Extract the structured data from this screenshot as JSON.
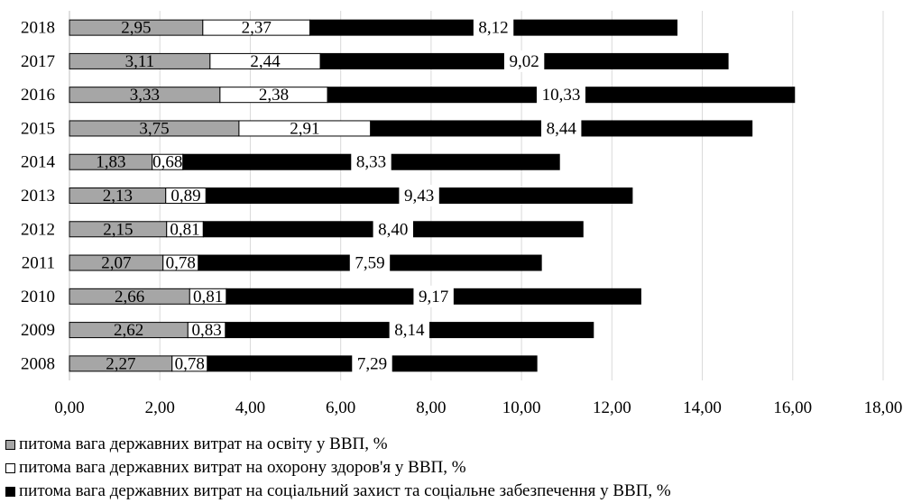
{
  "chart_data": {
    "type": "bar",
    "orientation": "horizontal",
    "stacked": true,
    "categories": [
      "2018",
      "2017",
      "2016",
      "2015",
      "2014",
      "2013",
      "2012",
      "2011",
      "2010",
      "2009",
      "2008"
    ],
    "series": [
      {
        "name": "питома вага державних витрат на освіту у ВВП, %",
        "color": "#a6a6a6",
        "values": [
          2.95,
          3.11,
          3.33,
          3.75,
          1.83,
          2.13,
          2.15,
          2.07,
          2.66,
          2.62,
          2.27
        ],
        "labels": [
          "2,95",
          "3,11",
          "3,33",
          "3,75",
          "1,83",
          "2,13",
          "2,15",
          "2,07",
          "2,66",
          "2,62",
          "2,27"
        ]
      },
      {
        "name": "питома вага державних витрат на охорону здоров'я у ВВП, %",
        "color": "#ffffff",
        "values": [
          2.37,
          2.44,
          2.38,
          2.91,
          0.68,
          0.89,
          0.81,
          0.78,
          0.81,
          0.83,
          0.78
        ],
        "labels": [
          "2,37",
          "2,44",
          "2,38",
          "2,91",
          "0,68",
          "0,89",
          "0,81",
          "0,78",
          "0,81",
          "0,83",
          "0,78"
        ]
      },
      {
        "name": "питома вага державних витрат на соціальний захист та соціальне забезпечення у ВВП, %",
        "color": "#000000",
        "values": [
          8.12,
          9.02,
          10.33,
          8.44,
          8.33,
          9.43,
          8.4,
          7.59,
          9.17,
          8.14,
          7.29
        ],
        "labels": [
          "8,12",
          "9,02",
          "10,33",
          "8,44",
          "8,33",
          "9,43",
          "8,40",
          "7,59",
          "9,17",
          "8,14",
          "7,29"
        ]
      }
    ],
    "xlim": [
      0,
      18
    ],
    "xticks": [
      "0,00",
      "2,00",
      "4,00",
      "6,00",
      "8,00",
      "10,00",
      "12,00",
      "14,00",
      "16,00",
      "18,00"
    ],
    "grid": true,
    "legend_position": "bottom-left"
  }
}
